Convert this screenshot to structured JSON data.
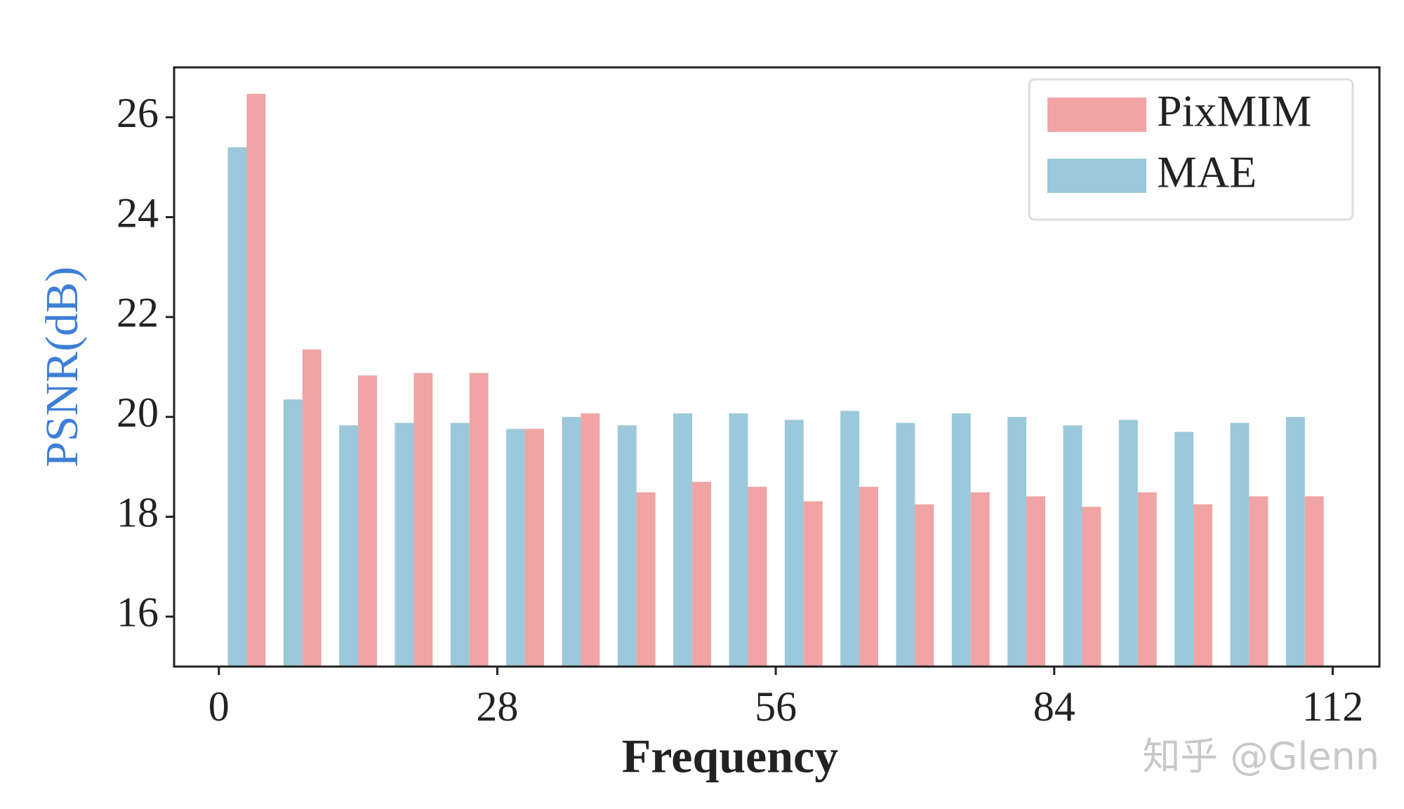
{
  "chart_data": {
    "type": "bar",
    "x": [
      2.8,
      8.4,
      14,
      19.6,
      25.2,
      30.8,
      36.4,
      42,
      47.6,
      53.2,
      58.8,
      64.4,
      70,
      75.6,
      81.2,
      86.8,
      92.4,
      98,
      103.6,
      109.2
    ],
    "series": [
      {
        "name": "PixMIM",
        "color": "#f0a4a4",
        "values": [
          26.47,
          21.35,
          20.83,
          20.88,
          20.88,
          19.76,
          20.07,
          18.49,
          18.7,
          18.6,
          18.31,
          18.6,
          18.25,
          18.49,
          18.41,
          18.2,
          18.49,
          18.25,
          18.41,
          18.41
        ]
      },
      {
        "name": "MAE",
        "color": "#9bc8da",
        "values": [
          25.4,
          20.35,
          19.83,
          19.88,
          19.88,
          19.76,
          20.0,
          19.83,
          20.07,
          20.07,
          19.94,
          20.12,
          19.88,
          20.07,
          20.0,
          19.83,
          19.94,
          19.7,
          19.88,
          20.0
        ]
      }
    ],
    "xlabel": "Frequency",
    "ylabel": "PSNR(dB)",
    "xlim": [
      -4.5,
      116.7
    ],
    "xticks": [
      0,
      28,
      56,
      84,
      112
    ],
    "ylim": [
      15,
      27
    ],
    "yticks": [
      16,
      18,
      20,
      22,
      24,
      26
    ],
    "legend": "upper right",
    "watermark": "知乎 @Glenn"
  }
}
